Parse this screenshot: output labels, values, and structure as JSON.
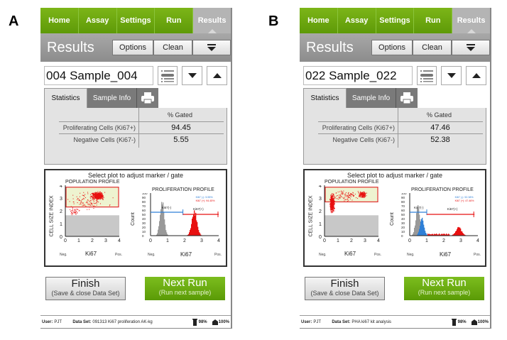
{
  "panels": [
    {
      "letter": "A",
      "nav": [
        "Home",
        "Assay",
        "Settings",
        "Run",
        "Results"
      ],
      "active_tab": "Results",
      "header": {
        "title": "Results",
        "options": "Options",
        "clean": "Clean"
      },
      "sample": {
        "value": "004 Sample_004"
      },
      "tabs": {
        "statistics": "Statistics",
        "sample_info": "Sample Info"
      },
      "stats": {
        "column": "% Gated",
        "rows": [
          {
            "label": "Proliferating Cells (Ki67+)",
            "value": "94.45"
          },
          {
            "label": "Negative Cells (Ki67-)",
            "value": "5.55"
          }
        ]
      },
      "plots": {
        "hint": "Select plot to adjust marker / gate",
        "population": {
          "title": "POPULATION PROFILE",
          "ylabel": "CELL SIZE INDEX",
          "xlabel": "Ki67",
          "neg": "Neg.",
          "pos": "Pos."
        },
        "proliferation": {
          "title": "PROLIFERATION PROFILE",
          "ylabel": "Count",
          "xlabel": "Ki67",
          "neg": "Neg.",
          "pos": "Pos.",
          "marker_neg": "Ki67(-)",
          "marker_pos": "Ki67(+)",
          "legend_neg": "Ki67 (-): 5.55%",
          "legend_pos": "Ki67 (+): 94.45%"
        }
      },
      "buttons": {
        "finish": "Finish",
        "finish_sub": "(Save & close Data Set)",
        "next": "Next Run",
        "next_sub": "(Run next sample)"
      },
      "status": {
        "user_label": "User:",
        "user": "PJT",
        "dataset_label": "Data Set:",
        "dataset": "091313 Ki67 proliferation AK-kg",
        "storage": "98%",
        "battery": "100%"
      }
    },
    {
      "letter": "B",
      "nav": [
        "Home",
        "Assay",
        "Settings",
        "Run",
        "Results"
      ],
      "active_tab": "Results",
      "header": {
        "title": "Results",
        "options": "Options",
        "clean": "Clean"
      },
      "sample": {
        "value": "022 Sample_022"
      },
      "tabs": {
        "statistics": "Statistics",
        "sample_info": "Sample Info"
      },
      "stats": {
        "column": "% Gated",
        "rows": [
          {
            "label": "Proliferating Cells (Ki67+)",
            "value": "47.46"
          },
          {
            "label": "Negative Cells (Ki67-)",
            "value": "52.38"
          }
        ]
      },
      "plots": {
        "hint": "Select plot to adjust marker / gate",
        "population": {
          "title": "POPULATION PROFILE",
          "ylabel": "CELL SIZE INDEX",
          "xlabel": "Ki67",
          "neg": "Neg.",
          "pos": "Pos."
        },
        "proliferation": {
          "title": "PROLIFERATION PROFILE",
          "ylabel": "Count",
          "xlabel": "Ki67",
          "neg": "Neg.",
          "pos": "Pos.",
          "marker_neg": "Ki67(-)",
          "marker_pos": "Ki67(+)",
          "legend_neg": "Ki67 (-): 52.38%",
          "legend_pos": "Ki67 (+): 47.46%"
        }
      },
      "buttons": {
        "finish": "Finish",
        "finish_sub": "(Save & close Data Set)",
        "next": "Next Run",
        "next_sub": "(Run next sample)"
      },
      "status": {
        "user_label": "User:",
        "user": "PJT",
        "dataset_label": "Data Set:",
        "dataset": "PHA ki67 kit analysis",
        "storage": "98%",
        "battery": "100%"
      }
    }
  ],
  "axis_ticks": {
    "x": [
      "0",
      "1",
      "2",
      "3",
      "4"
    ],
    "y_pop": [
      "0",
      "1",
      "2",
      "3",
      "4"
    ],
    "y_count": [
      "0",
      "10",
      "20",
      "30",
      "40",
      "50",
      "60",
      "70",
      "80",
      "90",
      "100"
    ]
  },
  "colors": {
    "nav_green": "#6aa80f",
    "header_gray": "#9a9a9a",
    "gate_fill": "#eef3d0",
    "gate_border": "#e03030",
    "neg_blue": "#2f7fd6",
    "pos_red": "#e81010",
    "hist_gray": "#999999"
  }
}
